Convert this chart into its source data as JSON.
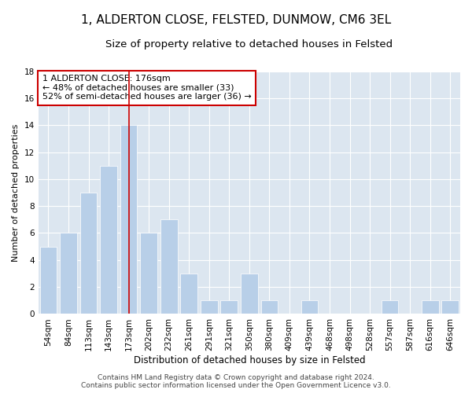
{
  "title": "1, ALDERTON CLOSE, FELSTED, DUNMOW, CM6 3EL",
  "subtitle": "Size of property relative to detached houses in Felsted",
  "xlabel": "Distribution of detached houses by size in Felsted",
  "ylabel": "Number of detached properties",
  "categories": [
    "54sqm",
    "84sqm",
    "113sqm",
    "143sqm",
    "173sqm",
    "202sqm",
    "232sqm",
    "261sqm",
    "291sqm",
    "321sqm",
    "350sqm",
    "380sqm",
    "409sqm",
    "439sqm",
    "468sqm",
    "498sqm",
    "528sqm",
    "557sqm",
    "587sqm",
    "616sqm",
    "646sqm"
  ],
  "values": [
    5,
    6,
    9,
    11,
    14,
    6,
    7,
    3,
    1,
    1,
    3,
    1,
    0,
    1,
    0,
    0,
    0,
    1,
    0,
    1,
    1
  ],
  "bar_color": "#b8cfe8",
  "bar_edgecolor": "#ffffff",
  "vline_x": 4,
  "vline_color": "#cc0000",
  "annotation_title": "1 ALDERTON CLOSE: 176sqm",
  "annotation_line1": "← 48% of detached houses are smaller (33)",
  "annotation_line2": "52% of semi-detached houses are larger (36) →",
  "annotation_box_color": "#ffffff",
  "annotation_box_edgecolor": "#cc0000",
  "ylim": [
    0,
    18
  ],
  "yticks": [
    0,
    2,
    4,
    6,
    8,
    10,
    12,
    14,
    16,
    18
  ],
  "background_color": "#dce6f0",
  "grid_color": "#ffffff",
  "footer_line1": "Contains HM Land Registry data © Crown copyright and database right 2024.",
  "footer_line2": "Contains public sector information licensed under the Open Government Licence v3.0.",
  "title_fontsize": 11,
  "subtitle_fontsize": 9.5,
  "xlabel_fontsize": 8.5,
  "ylabel_fontsize": 8,
  "tick_fontsize": 7.5,
  "annotation_fontsize": 8,
  "footer_fontsize": 6.5
}
